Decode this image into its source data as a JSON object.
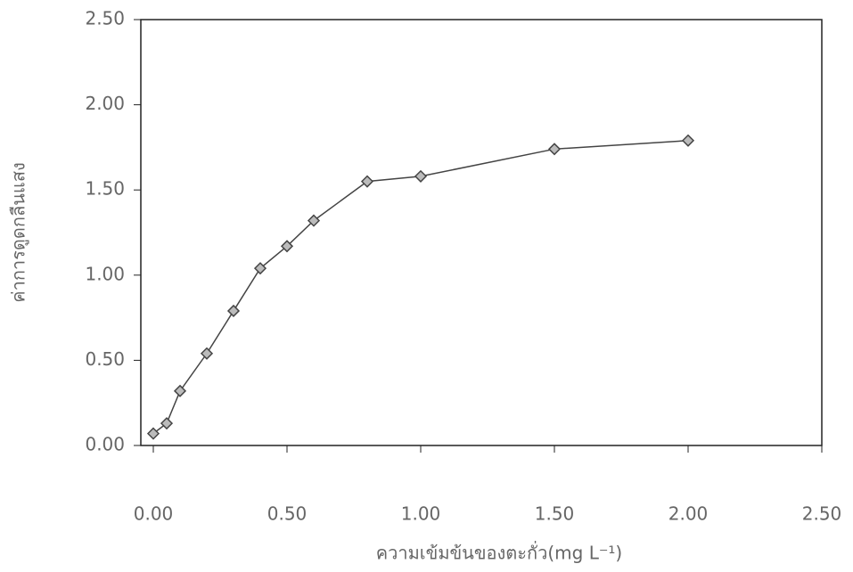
{
  "chart_data": {
    "type": "line",
    "xlabel": "ความเข้มข้นของตะกั่ว(mg L⁻¹)",
    "ylabel": "ค่าการดูดกลืนแสง",
    "x": [
      0,
      0.05,
      0.1,
      0.2,
      0.3,
      0.4,
      0.5,
      0.6,
      0.8,
      1.0,
      1.5,
      2.0
    ],
    "series": [
      {
        "color": "#444444",
        "values": [
          0.07,
          0.13,
          0.32,
          0.54,
          0.79,
          1.04,
          1.17,
          1.32,
          1.55,
          1.58,
          1.74,
          1.79
        ]
      }
    ],
    "xlim": [
      0,
      2.5
    ],
    "xticks": [
      {
        "value": 0,
        "label": "0.00"
      },
      {
        "value": 0.5,
        "label": "0.50"
      },
      {
        "value": 1,
        "label": "1.00"
      },
      {
        "value": 1.5,
        "label": "1.50"
      },
      {
        "value": 2,
        "label": "2.00"
      },
      {
        "value": 2.5,
        "label": "2.50"
      }
    ],
    "ylim": [
      0,
      2.5
    ],
    "yticks": [
      {
        "value": 0,
        "label": "0.00"
      },
      {
        "value": 0.5,
        "label": "0.50"
      },
      {
        "value": 1,
        "label": "1.00"
      },
      {
        "value": 1.5,
        "label": "1.50"
      },
      {
        "value": 2,
        "label": "2.00"
      },
      {
        "value": 2.5,
        "label": "2.50"
      }
    ],
    "grid": false
  }
}
